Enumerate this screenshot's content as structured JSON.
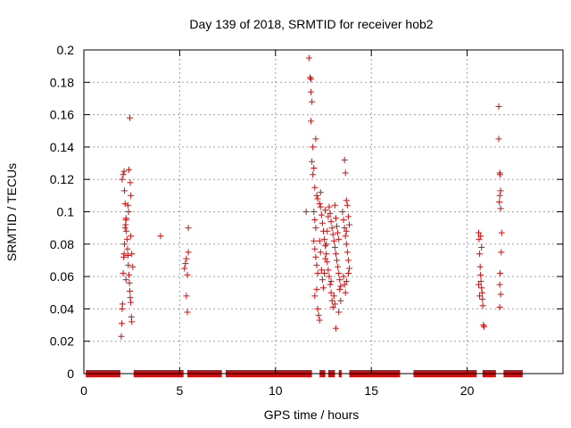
{
  "chart_data": {
    "type": "scatter",
    "title": "Day 139 of 2018, SRMTID for receiver hob2",
    "xlabel": "GPS time / hours",
    "ylabel": "SRMTID / TECUs",
    "xlim": [
      0,
      25
    ],
    "ylim": [
      0,
      0.2
    ],
    "xticks": [
      0,
      5,
      10,
      15,
      20
    ],
    "yticks": [
      0,
      0.02,
      0.04,
      0.06,
      0.08,
      0.1,
      0.12,
      0.14,
      0.16,
      0.18,
      0.2
    ],
    "xtick_labels": [
      "0",
      "5",
      "10",
      "15",
      "20"
    ],
    "ytick_labels": [
      "0",
      "0.02",
      "0.04",
      "0.06",
      "0.08",
      "0.1",
      "0.12",
      "0.14",
      "0.16",
      "0.18",
      "0.2"
    ],
    "grid": true,
    "series": [
      {
        "name": "SRMTID",
        "marker": "+",
        "color": "#d01010",
        "points": [
          [
            1.95,
            0.023
          ],
          [
            1.98,
            0.031
          ],
          [
            2.0,
            0.04
          ],
          [
            2.02,
            0.043
          ],
          [
            2.05,
            0.062
          ],
          [
            2.08,
            0.072
          ],
          [
            2.1,
            0.074
          ],
          [
            2.12,
            0.08
          ],
          [
            2.15,
            0.09
          ],
          [
            2.18,
            0.092
          ],
          [
            2.2,
            0.095
          ],
          [
            2.0,
            0.12
          ],
          [
            2.05,
            0.123
          ],
          [
            2.1,
            0.125
          ],
          [
            2.12,
            0.113
          ],
          [
            2.15,
            0.105
          ],
          [
            2.2,
            0.096
          ],
          [
            2.22,
            0.088
          ],
          [
            2.25,
            0.083
          ],
          [
            2.28,
            0.077
          ],
          [
            2.3,
            0.073
          ],
          [
            2.32,
            0.067
          ],
          [
            2.35,
            0.061
          ],
          [
            2.38,
            0.056
          ],
          [
            2.4,
            0.051
          ],
          [
            2.42,
            0.047
          ],
          [
            2.45,
            0.044
          ],
          [
            2.48,
            0.035
          ],
          [
            2.5,
            0.032
          ],
          [
            2.35,
            0.126
          ],
          [
            2.4,
            0.158
          ],
          [
            2.42,
            0.118
          ],
          [
            2.45,
            0.11
          ],
          [
            2.3,
            0.104
          ],
          [
            2.33,
            0.1
          ],
          [
            2.45,
            0.085
          ],
          [
            2.5,
            0.074
          ],
          [
            2.55,
            0.066
          ],
          [
            2.2,
            0.058
          ],
          [
            4.0,
            0.085
          ],
          [
            5.25,
            0.065
          ],
          [
            5.3,
            0.068
          ],
          [
            5.35,
            0.048
          ],
          [
            5.4,
            0.038
          ],
          [
            5.45,
            0.09
          ],
          [
            5.45,
            0.075
          ],
          [
            5.4,
            0.061
          ],
          [
            5.35,
            0.071
          ],
          [
            11.6,
            0.1
          ],
          [
            11.75,
            0.195
          ],
          [
            11.8,
            0.183
          ],
          [
            11.85,
            0.182
          ],
          [
            11.85,
            0.174
          ],
          [
            11.9,
            0.168
          ],
          [
            11.85,
            0.156
          ],
          [
            11.95,
            0.14
          ],
          [
            11.9,
            0.131
          ],
          [
            11.95,
            0.123
          ],
          [
            12.0,
            0.127
          ],
          [
            12.05,
            0.115
          ],
          [
            12.1,
            0.145
          ],
          [
            12.15,
            0.11
          ],
          [
            12.0,
            0.1
          ],
          [
            12.05,
            0.095
          ],
          [
            12.1,
            0.09
          ],
          [
            12.0,
            0.082
          ],
          [
            12.05,
            0.077
          ],
          [
            12.1,
            0.072
          ],
          [
            12.15,
            0.067
          ],
          [
            12.2,
            0.062
          ],
          [
            12.05,
            0.048
          ],
          [
            12.15,
            0.052
          ],
          [
            12.2,
            0.04
          ],
          [
            12.25,
            0.036
          ],
          [
            12.3,
            0.033
          ],
          [
            12.2,
            0.108
          ],
          [
            12.3,
            0.105
          ],
          [
            12.35,
            0.103
          ],
          [
            12.4,
            0.098
          ],
          [
            12.45,
            0.093
          ],
          [
            12.5,
            0.088
          ],
          [
            12.55,
            0.083
          ],
          [
            12.6,
            0.079
          ],
          [
            12.65,
            0.074
          ],
          [
            12.7,
            0.069
          ],
          [
            12.75,
            0.064
          ],
          [
            12.8,
            0.06
          ],
          [
            12.85,
            0.055
          ],
          [
            12.9,
            0.05
          ],
          [
            12.95,
            0.045
          ],
          [
            13.0,
            0.041
          ],
          [
            12.4,
            0.064
          ],
          [
            12.45,
            0.058
          ],
          [
            12.5,
            0.053
          ],
          [
            12.55,
            0.062
          ],
          [
            12.6,
            0.071
          ],
          [
            12.65,
            0.08
          ],
          [
            12.7,
            0.088
          ],
          [
            12.75,
            0.097
          ],
          [
            12.8,
            0.103
          ],
          [
            12.85,
            0.099
          ],
          [
            12.9,
            0.094
          ],
          [
            12.95,
            0.09
          ],
          [
            13.0,
            0.086
          ],
          [
            13.05,
            0.082
          ],
          [
            13.1,
            0.078
          ],
          [
            13.15,
            0.074
          ],
          [
            13.2,
            0.07
          ],
          [
            13.25,
            0.066
          ],
          [
            13.3,
            0.062
          ],
          [
            13.35,
            0.058
          ],
          [
            13.4,
            0.054
          ],
          [
            13.1,
            0.104
          ],
          [
            13.15,
            0.096
          ],
          [
            13.2,
            0.091
          ],
          [
            13.25,
            0.087
          ],
          [
            13.3,
            0.083
          ],
          [
            13.05,
            0.048
          ],
          [
            13.1,
            0.043
          ],
          [
            13.15,
            0.028
          ],
          [
            13.3,
            0.038
          ],
          [
            13.35,
            0.052
          ],
          [
            13.4,
            0.045
          ],
          [
            12.35,
            0.112
          ],
          [
            12.6,
            0.101
          ],
          [
            12.9,
            0.057
          ],
          [
            12.3,
            0.082
          ],
          [
            12.35,
            0.075
          ],
          [
            13.5,
            0.1
          ],
          [
            13.55,
            0.095
          ],
          [
            13.6,
            0.09
          ],
          [
            13.65,
            0.085
          ],
          [
            13.7,
            0.08
          ],
          [
            13.75,
            0.075
          ],
          [
            13.8,
            0.07
          ],
          [
            13.85,
            0.065
          ],
          [
            13.6,
            0.132
          ],
          [
            13.65,
            0.124
          ],
          [
            13.7,
            0.107
          ],
          [
            13.75,
            0.104
          ],
          [
            13.55,
            0.06
          ],
          [
            13.6,
            0.055
          ],
          [
            13.65,
            0.05
          ],
          [
            13.7,
            0.057
          ],
          [
            13.8,
            0.062
          ],
          [
            13.85,
            0.092
          ],
          [
            13.8,
            0.097
          ],
          [
            13.7,
            0.088
          ],
          [
            20.6,
            0.087
          ],
          [
            20.62,
            0.083
          ],
          [
            20.65,
            0.074
          ],
          [
            20.68,
            0.066
          ],
          [
            20.7,
            0.061
          ],
          [
            20.72,
            0.057
          ],
          [
            20.75,
            0.053
          ],
          [
            20.78,
            0.05
          ],
          [
            20.8,
            0.046
          ],
          [
            20.82,
            0.042
          ],
          [
            20.85,
            0.03
          ],
          [
            20.88,
            0.029
          ],
          [
            20.7,
            0.085
          ],
          [
            20.75,
            0.078
          ],
          [
            20.6,
            0.055
          ],
          [
            20.65,
            0.048
          ],
          [
            21.65,
            0.165
          ],
          [
            21.65,
            0.145
          ],
          [
            21.7,
            0.124
          ],
          [
            21.72,
            0.123
          ],
          [
            21.75,
            0.113
          ],
          [
            21.7,
            0.11
          ],
          [
            21.68,
            0.106
          ],
          [
            21.75,
            0.102
          ],
          [
            21.8,
            0.087
          ],
          [
            21.78,
            0.075
          ],
          [
            21.72,
            0.062
          ],
          [
            21.7,
            0.055
          ],
          [
            21.75,
            0.049
          ],
          [
            21.7,
            0.041
          ]
        ]
      }
    ],
    "baseline_segments": [
      [
        0.1,
        1.9
      ],
      [
        2.6,
        5.2
      ],
      [
        5.4,
        7.2
      ],
      [
        7.4,
        11.9
      ],
      [
        12.3,
        12.6
      ],
      [
        12.75,
        13.1
      ],
      [
        13.3,
        13.45
      ],
      [
        13.85,
        16.5
      ],
      [
        17.2,
        20.5
      ],
      [
        20.8,
        21.5
      ],
      [
        21.9,
        22.9
      ]
    ]
  }
}
